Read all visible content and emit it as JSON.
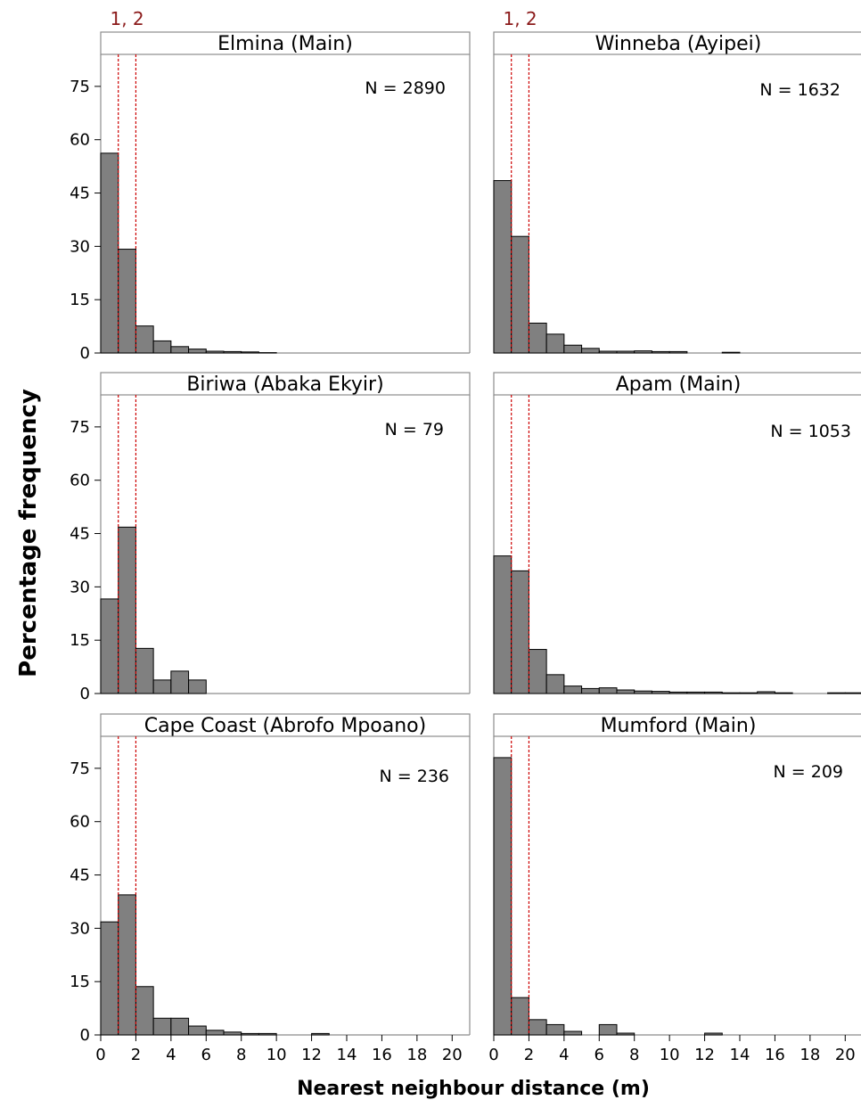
{
  "chart_data": {
    "type": "bar",
    "xlabel": "Nearest neighbour distance (m)",
    "ylabel": "Percentage frequency",
    "xlim": [
      0,
      21
    ],
    "ylim": [
      0,
      84
    ],
    "x_ticks": [
      0,
      2,
      4,
      6,
      8,
      10,
      12,
      14,
      16,
      18,
      20
    ],
    "y_ticks": [
      0,
      15,
      30,
      45,
      60,
      75
    ],
    "bin_width": 1,
    "reference_lines": {
      "values": [
        1,
        2
      ],
      "label": "1, 2",
      "color": "#cc0000"
    },
    "bar_color": "#808080",
    "panels": [
      {
        "title": "Elmina (Main)",
        "n_label": "N = 2890",
        "values": [
          56.2,
          29.2,
          7.6,
          3.4,
          1.8,
          1.1,
          0.5,
          0.4,
          0.3,
          0.1,
          0,
          0,
          0,
          0,
          0,
          0,
          0,
          0,
          0,
          0,
          0
        ]
      },
      {
        "title": "Winneba (Ayipei)",
        "n_label": "N = 1632",
        "values": [
          48.5,
          32.8,
          8.4,
          5.3,
          2.2,
          1.3,
          0.5,
          0.5,
          0.6,
          0.4,
          0.4,
          0,
          0,
          0.2,
          0,
          0,
          0,
          0,
          0,
          0,
          0
        ]
      },
      {
        "title": "Biriwa (Abaka Ekyir)",
        "n_label": "N = 79",
        "values": [
          26.6,
          46.8,
          12.7,
          3.8,
          6.3,
          3.8,
          0,
          0,
          0,
          0,
          0,
          0,
          0,
          0,
          0,
          0,
          0,
          0,
          0,
          0,
          0
        ]
      },
      {
        "title": "Apam (Main)",
        "n_label": "N = 1053",
        "values": [
          38.7,
          34.5,
          12.4,
          5.3,
          2.1,
          1.4,
          1.6,
          1.0,
          0.7,
          0.6,
          0.4,
          0.4,
          0.4,
          0.2,
          0.2,
          0.5,
          0.2,
          0,
          0,
          0.2,
          0.2
        ]
      },
      {
        "title": "Cape Coast (Abrofo Mpoano)",
        "n_label": "N = 236",
        "values": [
          31.8,
          39.4,
          13.6,
          4.7,
          4.7,
          2.5,
          1.3,
          0.8,
          0.4,
          0.4,
          0,
          0,
          0.4,
          0,
          0,
          0,
          0,
          0,
          0,
          0,
          0
        ]
      },
      {
        "title": "Mumford (Main)",
        "n_label": "N = 209",
        "values": [
          78.0,
          10.5,
          4.3,
          2.9,
          1.0,
          0,
          2.9,
          0.5,
          0,
          0,
          0,
          0,
          0.5,
          0,
          0,
          0,
          0,
          0,
          0,
          0,
          0
        ]
      }
    ]
  }
}
